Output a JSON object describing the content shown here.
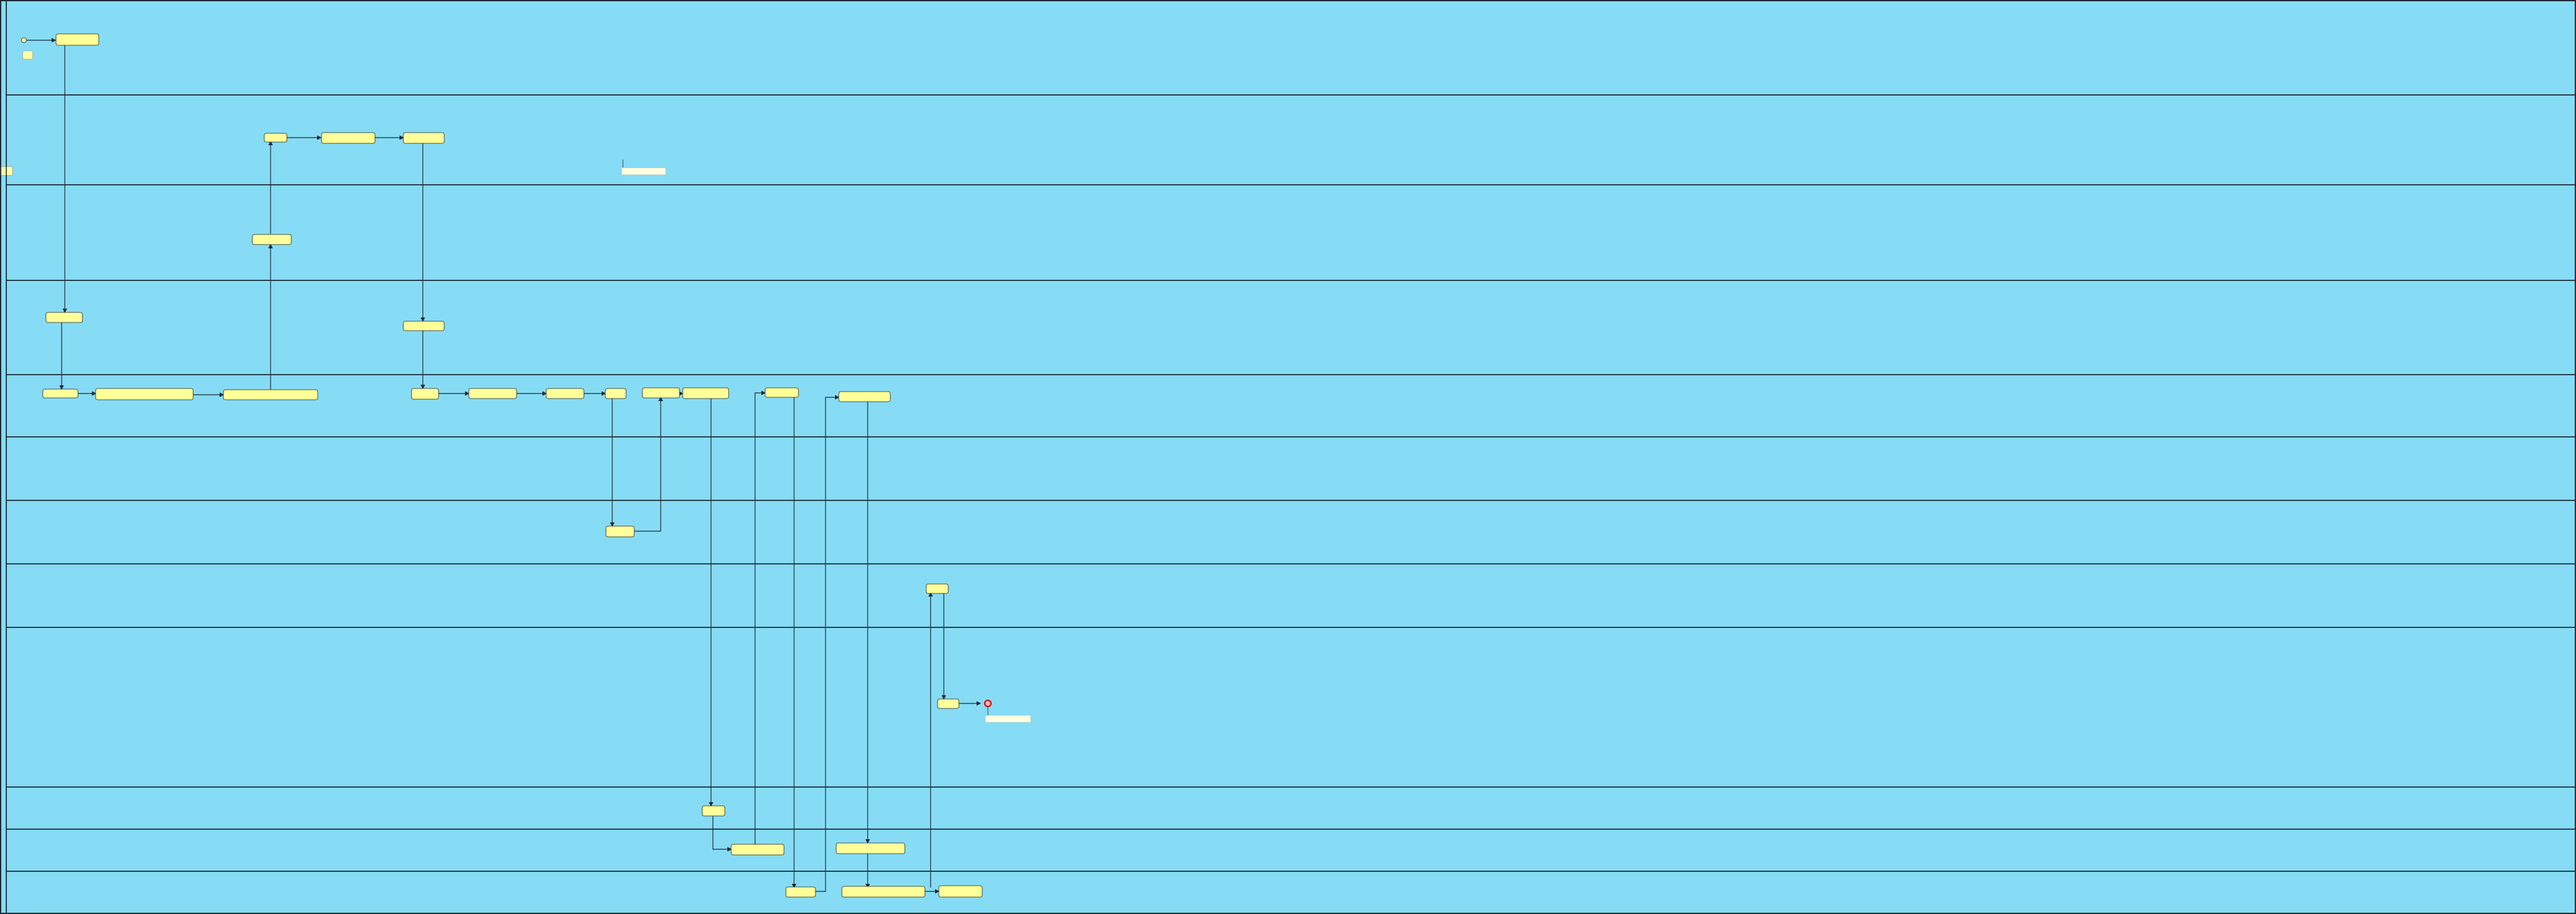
{
  "colors": {
    "background": "#86DCF5",
    "lane_border": "#1E2A36",
    "task_fill": "#FFFF99",
    "task_stroke": "#222222",
    "arrow": "#1E2A36",
    "end_event": "#CC0000",
    "start_event": "#FFFFAA"
  },
  "diagram": {
    "lanes": [
      {
        "label": ""
      },
      {
        "label": ""
      },
      {
        "label": ""
      },
      {
        "label": ""
      },
      {
        "label": ""
      },
      {
        "label": ""
      },
      {
        "label": ""
      },
      {
        "label": ""
      },
      {
        "label": ""
      },
      {
        "label": ""
      },
      {
        "label": ""
      },
      {
        "label": ""
      }
    ],
    "tasks": [
      {
        "text": ""
      },
      {
        "text": ""
      },
      {
        "text": ""
      },
      {
        "text": ""
      },
      {
        "text": ""
      },
      {
        "text": ""
      },
      {
        "text": ""
      },
      {
        "text": ""
      },
      {
        "text": ""
      },
      {
        "text": ""
      },
      {
        "text": ""
      },
      {
        "text": ""
      },
      {
        "text": ""
      },
      {
        "text": ""
      },
      {
        "text": ""
      },
      {
        "text": ""
      },
      {
        "text": ""
      },
      {
        "text": ""
      },
      {
        "text": ""
      },
      {
        "text": ""
      },
      {
        "text": ""
      },
      {
        "text": ""
      },
      {
        "text": ""
      },
      {
        "text": ""
      },
      {
        "text": ""
      },
      {
        "text": ""
      },
      {
        "text": ""
      },
      {
        "text": ""
      }
    ],
    "notes": [
      {
        "text": ""
      },
      {
        "text": ""
      },
      {
        "text": ""
      }
    ]
  }
}
